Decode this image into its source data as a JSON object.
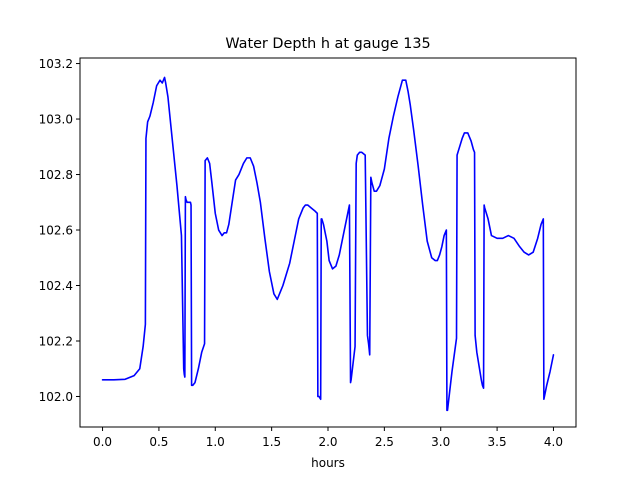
{
  "chart_data": {
    "type": "line",
    "title": "Water Depth h at gauge 135",
    "xlabel": "hours",
    "ylabel": "",
    "xlim": [
      -0.2,
      4.2
    ],
    "ylim": [
      101.89,
      103.22
    ],
    "grid": false,
    "xticks": [
      0.0,
      0.5,
      1.0,
      1.5,
      2.0,
      2.5,
      3.0,
      3.5,
      4.0
    ],
    "xtick_labels": [
      "0.0",
      "0.5",
      "1.0",
      "1.5",
      "2.0",
      "2.5",
      "3.0",
      "3.5",
      "4.0"
    ],
    "yticks": [
      102.0,
      102.2,
      102.4,
      102.6,
      102.8,
      103.0,
      103.2
    ],
    "ytick_labels": [
      "102.0",
      "102.2",
      "102.4",
      "102.6",
      "102.8",
      "103.0",
      "103.2"
    ],
    "series": [
      {
        "color": "#0000ff",
        "x": [
          0.0,
          0.1,
          0.2,
          0.28,
          0.33,
          0.36,
          0.38,
          0.385,
          0.4,
          0.42,
          0.45,
          0.48,
          0.51,
          0.53,
          0.55,
          0.56,
          0.58,
          0.6,
          0.63,
          0.66,
          0.7,
          0.72,
          0.725,
          0.73,
          0.735,
          0.74,
          0.75,
          0.77,
          0.78,
          0.785,
          0.79,
          0.8,
          0.82,
          0.85,
          0.88,
          0.905,
          0.91,
          0.93,
          0.95,
          0.97,
          1.0,
          1.03,
          1.06,
          1.08,
          1.1,
          1.12,
          1.15,
          1.18,
          1.21,
          1.25,
          1.28,
          1.31,
          1.34,
          1.37,
          1.4,
          1.44,
          1.48,
          1.52,
          1.55,
          1.58,
          1.6,
          1.63,
          1.66,
          1.7,
          1.74,
          1.78,
          1.8,
          1.82,
          1.85,
          1.88,
          1.905,
          1.91,
          1.92,
          1.935,
          1.94,
          1.945,
          1.96,
          1.99,
          2.01,
          2.04,
          2.07,
          2.1,
          2.13,
          2.16,
          2.19,
          2.2,
          2.205,
          2.24,
          2.25,
          2.26,
          2.28,
          2.3,
          2.33,
          2.35,
          2.36,
          2.365,
          2.37,
          2.38,
          2.385,
          2.39,
          2.41,
          2.43,
          2.46,
          2.5,
          2.54,
          2.58,
          2.62,
          2.66,
          2.69,
          2.71,
          2.73,
          2.76,
          2.8,
          2.84,
          2.88,
          2.92,
          2.95,
          2.97,
          2.99,
          3.01,
          3.03,
          3.05,
          3.055,
          3.06,
          3.1,
          3.14,
          3.145,
          3.16,
          3.19,
          3.21,
          3.24,
          3.27,
          3.29,
          3.3,
          3.305,
          3.32,
          3.36,
          3.37,
          3.38,
          3.385,
          3.39,
          3.42,
          3.45,
          3.5,
          3.55,
          3.6,
          3.65,
          3.7,
          3.74,
          3.78,
          3.82,
          3.86,
          3.89,
          3.91,
          3.915,
          3.92,
          3.94,
          3.97,
          4.0
        ],
        "y": [
          102.06,
          102.06,
          102.062,
          102.075,
          102.1,
          102.18,
          102.26,
          102.93,
          102.99,
          103.01,
          103.06,
          103.12,
          103.14,
          103.13,
          103.15,
          103.13,
          103.08,
          103.0,
          102.88,
          102.76,
          102.58,
          102.1,
          102.08,
          102.07,
          102.72,
          102.71,
          102.7,
          102.7,
          102.7,
          102.69,
          102.04,
          102.04,
          102.05,
          102.1,
          102.16,
          102.19,
          102.85,
          102.86,
          102.84,
          102.77,
          102.66,
          102.6,
          102.58,
          102.59,
          102.59,
          102.62,
          102.7,
          102.78,
          102.8,
          102.84,
          102.86,
          102.86,
          102.83,
          102.77,
          102.7,
          102.57,
          102.45,
          102.37,
          102.35,
          102.38,
          102.4,
          102.44,
          102.48,
          102.56,
          102.64,
          102.68,
          102.69,
          102.69,
          102.68,
          102.67,
          102.66,
          102.0,
          102.0,
          101.99,
          102.64,
          102.64,
          102.62,
          102.56,
          102.49,
          102.46,
          102.47,
          102.51,
          102.57,
          102.63,
          102.69,
          102.05,
          102.06,
          102.18,
          102.84,
          102.87,
          102.88,
          102.88,
          102.87,
          102.22,
          102.19,
          102.17,
          102.15,
          102.79,
          102.78,
          102.77,
          102.74,
          102.74,
          102.76,
          102.82,
          102.93,
          103.01,
          103.08,
          103.14,
          103.14,
          103.1,
          103.05,
          102.96,
          102.83,
          102.69,
          102.56,
          102.5,
          102.49,
          102.49,
          102.51,
          102.54,
          102.58,
          102.6,
          101.95,
          101.95,
          102.09,
          102.21,
          102.87,
          102.89,
          102.93,
          102.95,
          102.95,
          102.92,
          102.89,
          102.88,
          102.22,
          102.16,
          102.06,
          102.04,
          102.03,
          102.69,
          102.68,
          102.64,
          102.58,
          102.57,
          102.57,
          102.58,
          102.57,
          102.54,
          102.52,
          102.51,
          102.52,
          102.57,
          102.62,
          102.64,
          101.99,
          102.0,
          102.04,
          102.09,
          102.15
        ]
      }
    ]
  }
}
